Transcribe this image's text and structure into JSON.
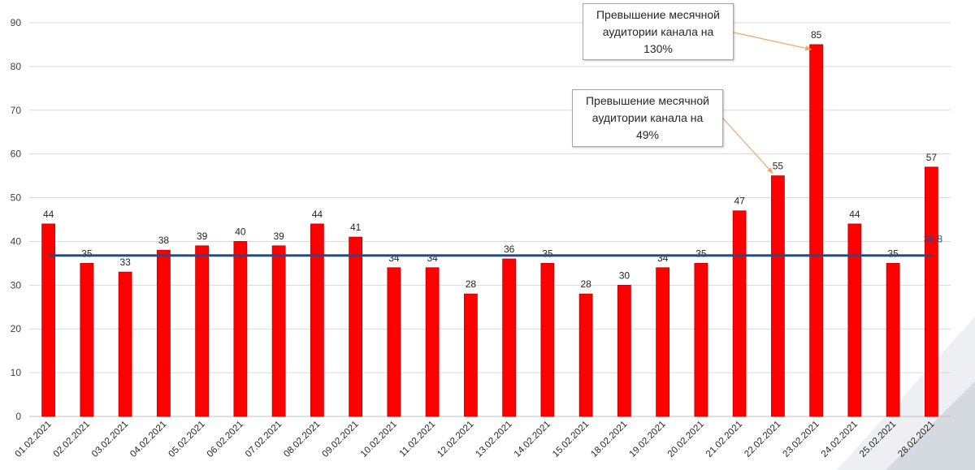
{
  "chart_data": {
    "type": "bar",
    "categories": [
      "01.02.2021",
      "02.02.2021",
      "03.02.2021",
      "04.02.2021",
      "05.02.2021",
      "06.02.2021",
      "07.02.2021",
      "08.02.2021",
      "09.02.2021",
      "10.02.2021",
      "11.02.2021",
      "12.02.2021",
      "13.02.2021",
      "14.02.2021",
      "15.02.2021",
      "18.02.2021",
      "19.02.2021",
      "20.02.2021",
      "21.02.2021",
      "22.02.2021",
      "23.02.2021",
      "24.02.2021",
      "25.02.2021",
      "28.02.2021"
    ],
    "values": [
      44,
      35,
      33,
      38,
      39,
      40,
      39,
      44,
      41,
      34,
      34,
      28,
      36,
      35,
      28,
      30,
      34,
      35,
      47,
      55,
      85,
      44,
      35,
      57
    ],
    "value_labels": [
      "44",
      "35",
      "33",
      "38",
      "39",
      "40",
      "39",
      "44",
      "41",
      "34",
      "34",
      "28",
      "36",
      "35",
      "28",
      "30",
      "34",
      "35",
      "47",
      "55",
      "85",
      "44",
      "35",
      "57"
    ],
    "ylim": [
      0,
      90
    ],
    "yticks": [
      "0",
      "10",
      "20",
      "30",
      "40",
      "50",
      "60",
      "70",
      "80",
      "90"
    ],
    "reference_line": {
      "value": 36.8,
      "label": "36,8"
    },
    "grid": "horizontal",
    "colors": {
      "bar": "#ff0000",
      "bar_edge": "#c00000",
      "reference_line": "#1f4e8c",
      "grid": "#d9d9d9",
      "arrow": "#f4a460",
      "decor": "#dfe2e8"
    },
    "annotations": [
      {
        "lines": [
          "Превышение месячной",
          "аудитории канала на",
          "130%"
        ],
        "target_category": "23.02.2021"
      },
      {
        "lines": [
          "Превышение месячной",
          "аудитории канала на",
          "49%"
        ],
        "target_category": "22.02.2021"
      }
    ]
  }
}
